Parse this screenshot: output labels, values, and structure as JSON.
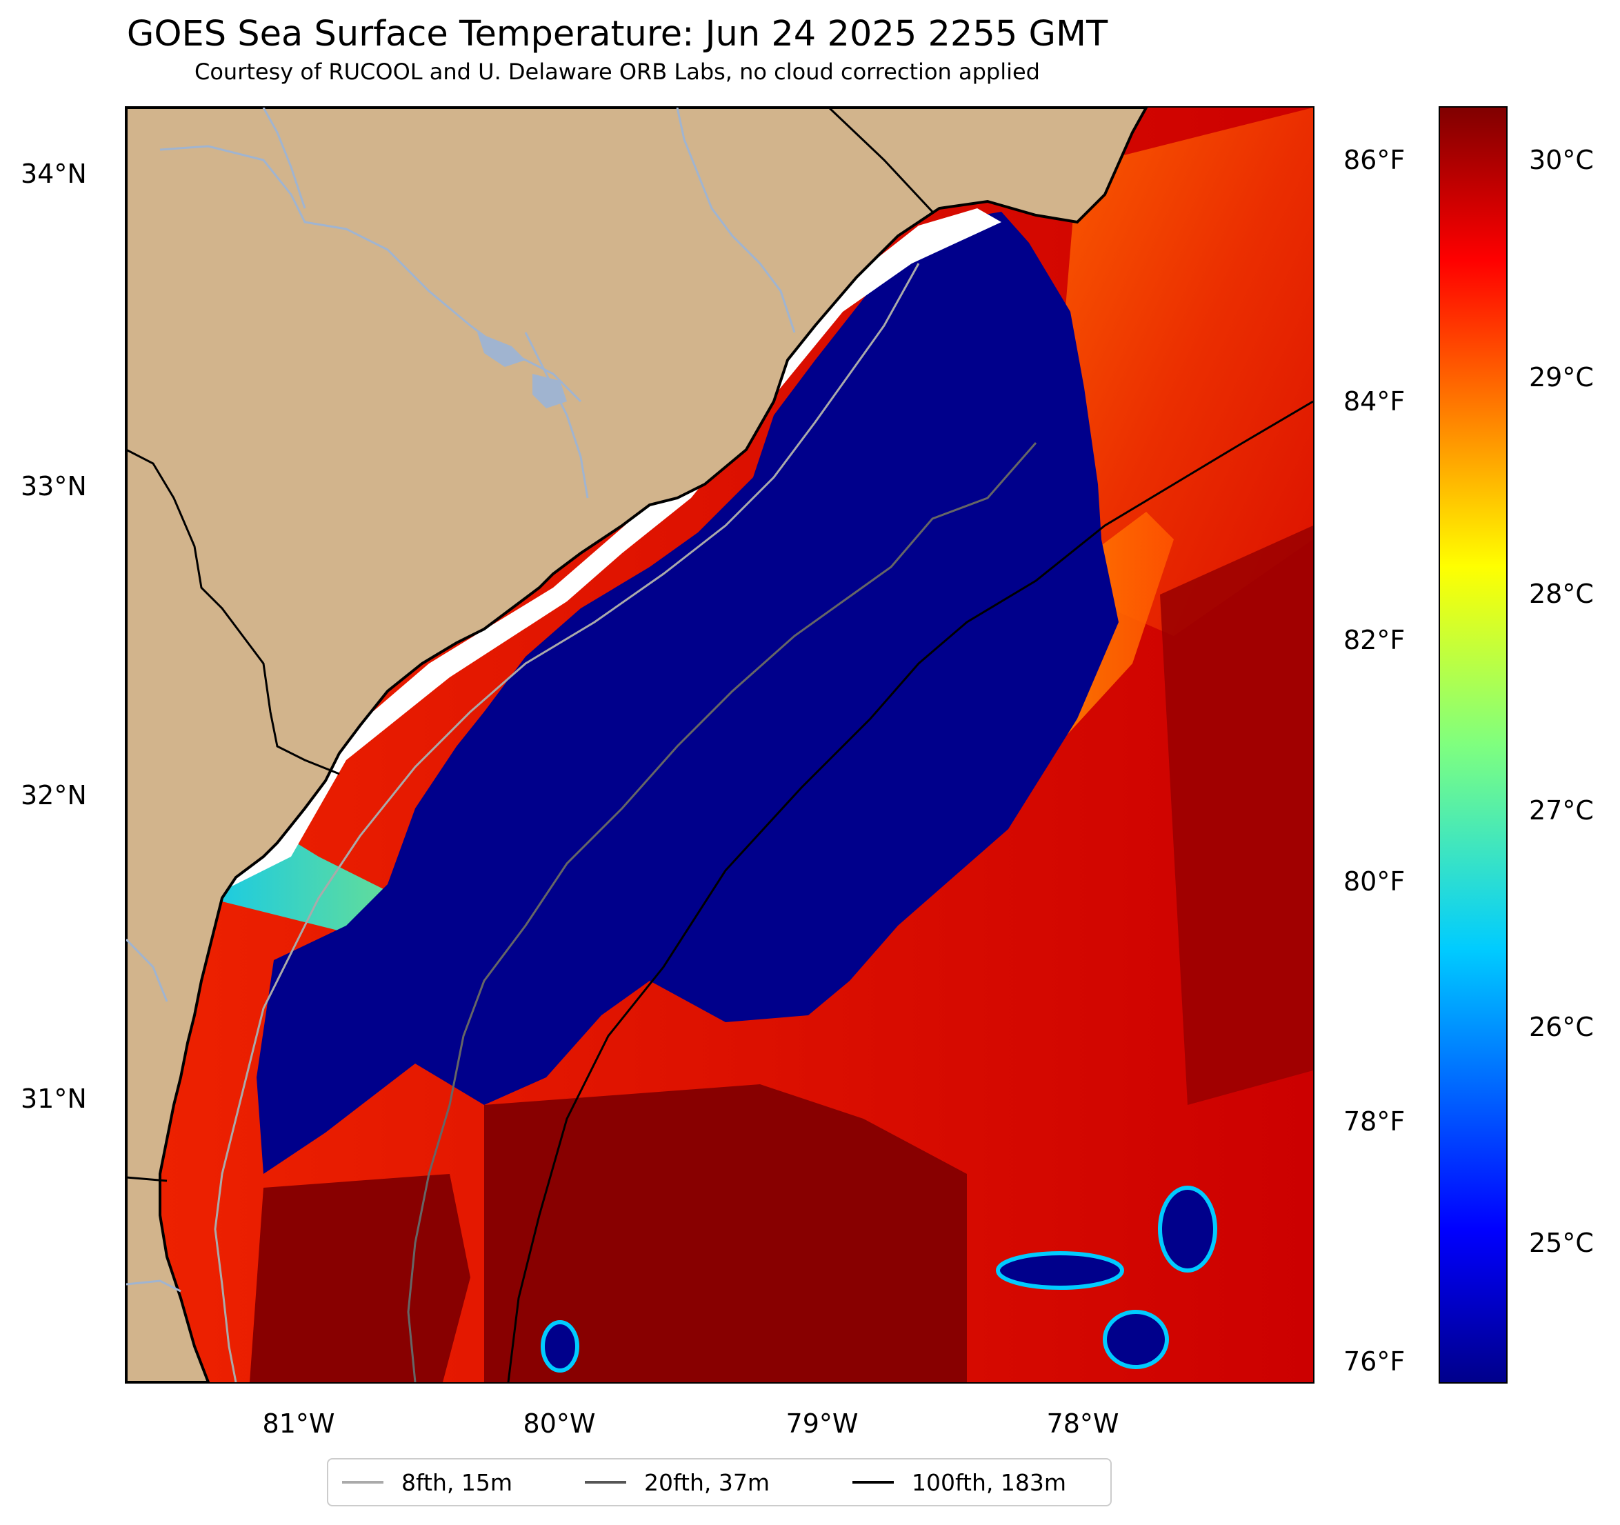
{
  "title": "GOES Sea Surface Temperature: Jun 24 2025 2255 GMT",
  "subtitle": "Courtesy of RUCOOL and U. Delaware ORB Labs, no cloud correction applied",
  "colors": {
    "land": "#d2b48c",
    "cold_water": "#00008b",
    "warm_water": "#cc0000",
    "hot_water": "#800000",
    "no_data": "#ffffff",
    "river": "#a0b4d0"
  },
  "lat_ticks": [
    "34°N",
    "33°N",
    "32°N",
    "31°N"
  ],
  "lon_ticks": [
    "81°W",
    "80°W",
    "79°W",
    "78°W"
  ],
  "colorbar": {
    "fahrenheit_ticks": [
      "86°F",
      "84°F",
      "82°F",
      "80°F",
      "78°F",
      "76°F"
    ],
    "celsius_ticks": [
      "30°C",
      "29°C",
      "28°C",
      "27°C",
      "26°C",
      "25°C"
    ],
    "colormap": "jet"
  },
  "legend": {
    "items": [
      {
        "label": "8fth, 15m",
        "color": "#aaaaaa"
      },
      {
        "label": "20fth, 37m",
        "color": "#555555"
      },
      {
        "label": "100fth, 183m",
        "color": "#000000"
      }
    ]
  }
}
